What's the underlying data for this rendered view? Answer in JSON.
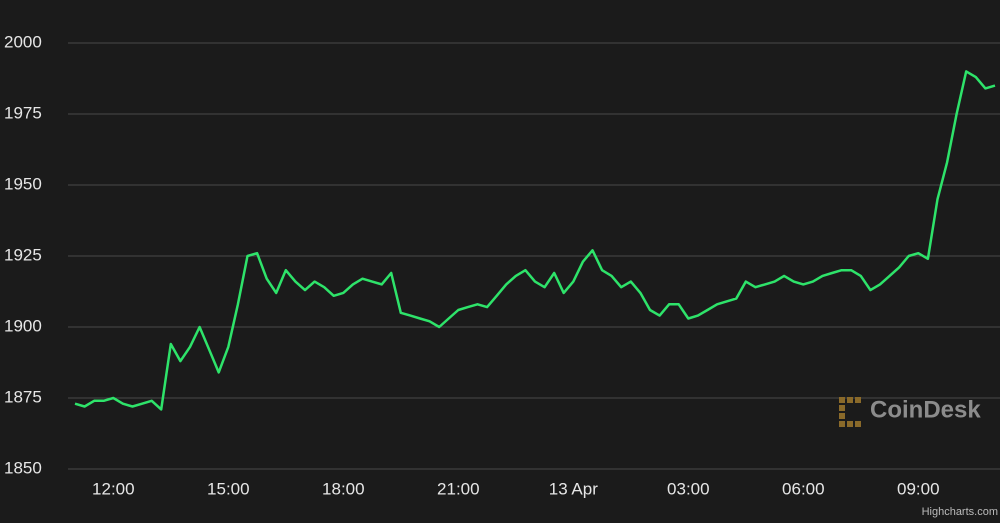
{
  "chart_data": {
    "type": "line",
    "categories": [
      null,
      null,
      null,
      null,
      "12:00",
      null,
      null,
      null,
      null,
      null,
      null,
      null,
      null,
      null,
      null,
      null,
      "15:00",
      null,
      null,
      null,
      null,
      null,
      null,
      null,
      null,
      null,
      null,
      null,
      "18:00",
      null,
      null,
      null,
      null,
      null,
      null,
      null,
      null,
      null,
      null,
      null,
      "21:00",
      null,
      null,
      null,
      null,
      null,
      null,
      null,
      null,
      null,
      null,
      null,
      "13 Apr",
      null,
      null,
      null,
      null,
      null,
      null,
      null,
      null,
      null,
      null,
      null,
      "03:00",
      null,
      null,
      null,
      null,
      null,
      null,
      null,
      null,
      null,
      null,
      null,
      "06:00",
      null,
      null,
      null,
      null,
      null,
      null,
      null,
      null,
      null,
      null,
      null,
      "09:00",
      null,
      null,
      null,
      null,
      null,
      null,
      null,
      null
    ],
    "series": [
      {
        "color": "#2ee36a",
        "values": [
          1873,
          1872,
          1874,
          1874,
          1875,
          1873,
          1872,
          1873,
          1874,
          1871,
          1894,
          1888,
          1893,
          1900,
          1892,
          1884,
          1893,
          1908,
          1925,
          1926,
          1917,
          1912,
          1920,
          1916,
          1913,
          1916,
          1914,
          1911,
          1912,
          1915,
          1917,
          1916,
          1915,
          1919,
          1905,
          1904,
          1903,
          1902,
          1900,
          1903,
          1906,
          1907,
          1908,
          1907,
          1911,
          1915,
          1918,
          1920,
          1916,
          1914,
          1919,
          1912,
          1916,
          1923,
          1927,
          1920,
          1918,
          1914,
          1916,
          1912,
          1906,
          1904,
          1908,
          1908,
          1903,
          1904,
          1906,
          1908,
          1909,
          1910,
          1916,
          1914,
          1915,
          1916,
          1918,
          1916,
          1915,
          1916,
          1918,
          1919,
          1920,
          1920,
          1918,
          1913,
          1915,
          1918,
          1921,
          1925,
          1926,
          1924,
          1945,
          1958,
          1975,
          1990,
          1988,
          1984,
          1985
        ]
      }
    ],
    "ylim": [
      1850,
      2000
    ],
    "yticks": [
      1850,
      1875,
      1900,
      1925,
      1950,
      1975,
      2000
    ],
    "grid": true,
    "watermark": "CoinDesk",
    "credits": "Highcharts.com"
  }
}
